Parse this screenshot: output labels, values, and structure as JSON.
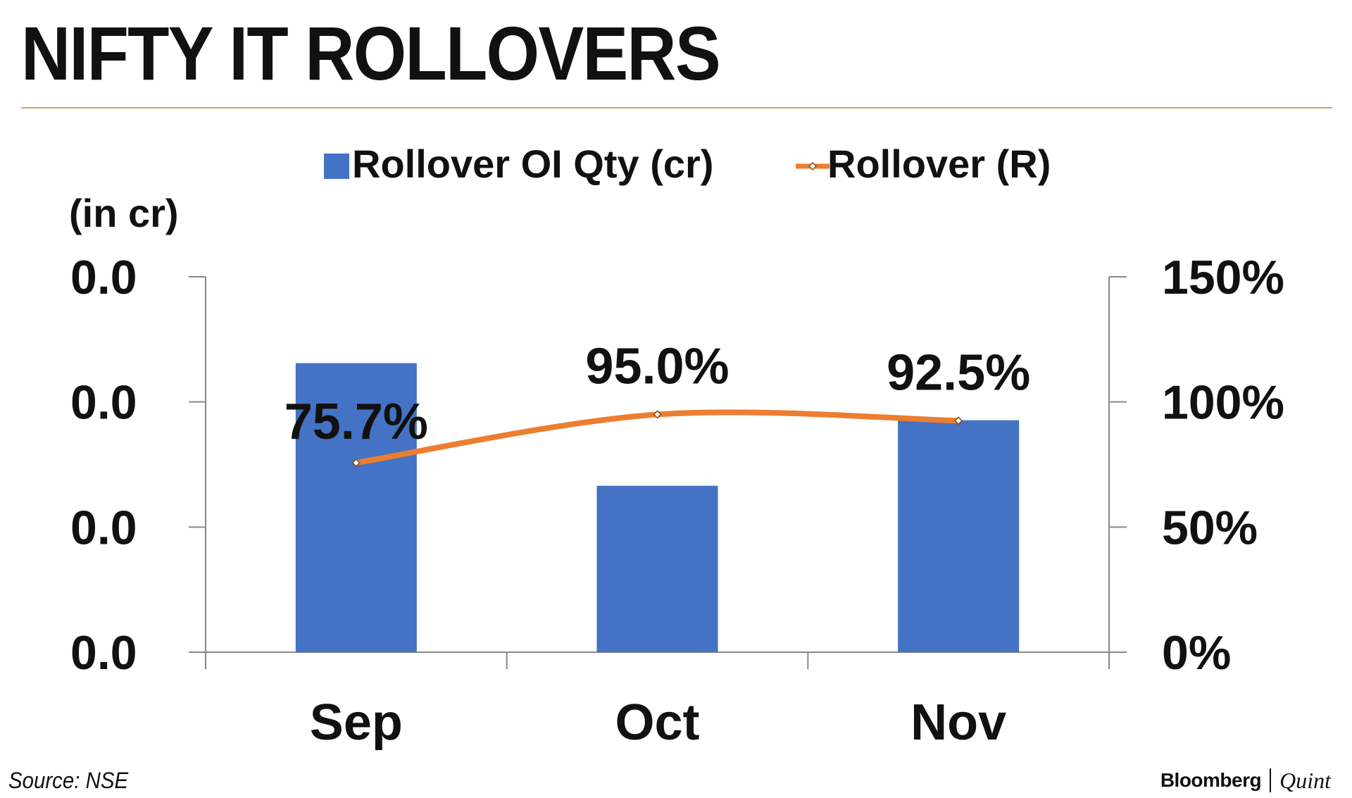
{
  "title": "NIFTY IT ROLLOVERS",
  "source": "Source: NSE",
  "brand": {
    "primary": "Bloomberg",
    "secondary": "Quint"
  },
  "colors": {
    "bar": "#4472c4",
    "line": "#ed7d31",
    "rule": "#c9a46a",
    "axis": "#888888"
  },
  "chart_data": {
    "type": "bar",
    "categories": [
      "Sep",
      "Oct",
      "Nov"
    ],
    "unit_label": "(in cr)",
    "legend": {
      "position": "top"
    },
    "left_axis": {
      "tick_labels": [
        "0.0",
        "0.0",
        "0.0",
        "0.0"
      ]
    },
    "right_axis": {
      "tick_labels": [
        "0%",
        "50%",
        "100%",
        "150%"
      ],
      "ylim": [
        0,
        150
      ]
    },
    "series": [
      {
        "name": "Rollover OI Qty (cr)",
        "type": "bar",
        "axis": "left",
        "values": [
          115.5,
          66.5,
          92.7
        ]
      },
      {
        "name": "Rollover (R)",
        "type": "line",
        "axis": "right",
        "values": [
          75.7,
          95.0,
          92.5
        ],
        "data_labels": [
          "75.7%",
          "95.0%",
          "92.5%"
        ]
      }
    ]
  }
}
